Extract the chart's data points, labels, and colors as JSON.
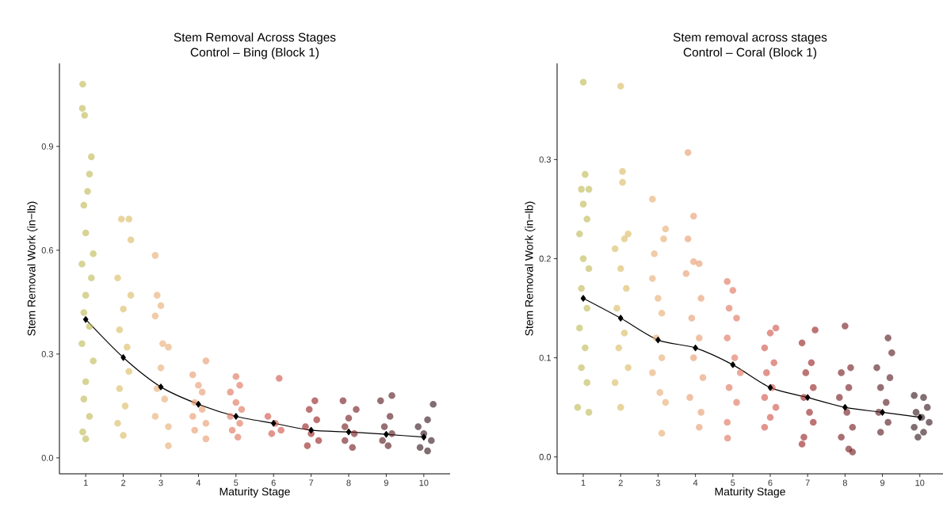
{
  "chart_data": [
    {
      "type": "scatter",
      "title": "Stem Removal Across Stages",
      "subtitle": "Control – Bing (Block 1)",
      "xlabel": "Maturity Stage",
      "ylabel": "Stem Removal Work (in−lb)",
      "xlim": [
        0.3,
        10.7
      ],
      "ylim": [
        -0.046,
        1.14
      ],
      "xticks": [
        1,
        2,
        3,
        4,
        5,
        6,
        7,
        8,
        9,
        10
      ],
      "yticks": [
        {
          "value": 0,
          "label": "0.0"
        },
        0.3,
        0.6,
        0.9
      ],
      "marker": "circle",
      "series": [
        {
          "color": "#c2bd5e",
          "x": [
            0.92,
            0.91,
            0.97,
            1.15,
            1.1,
            1.05,
            0.95,
            1.0,
            1.2,
            0.9,
            1.15,
            1.0,
            0.95,
            1.1,
            0.9,
            1.2,
            1.0,
            0.95,
            1.1,
            0.92,
            1.0
          ],
          "values": [
            1.08,
            1.01,
            0.99,
            0.87,
            0.82,
            0.77,
            0.73,
            0.65,
            0.59,
            0.56,
            0.52,
            0.47,
            0.42,
            0.38,
            0.33,
            0.28,
            0.22,
            0.17,
            0.12,
            0.075,
            0.055
          ]
        },
        {
          "color": "#dcbf6a",
          "x": [
            1.95,
            2.15,
            2.2,
            1.85,
            2.2,
            2.0,
            1.9,
            2.1,
            2.15,
            1.9,
            2.05,
            1.85,
            2.0
          ],
          "values": [
            0.69,
            0.69,
            0.63,
            0.52,
            0.47,
            0.43,
            0.37,
            0.32,
            0.25,
            0.2,
            0.15,
            0.1,
            0.065
          ]
        },
        {
          "color": "#e8b07a",
          "x": [
            2.85,
            2.9,
            3.0,
            2.85,
            3.05,
            3.2,
            3.0,
            2.9,
            3.1,
            2.85,
            3.2,
            3.2
          ],
          "values": [
            0.585,
            0.47,
            0.44,
            0.41,
            0.33,
            0.32,
            0.26,
            0.2,
            0.17,
            0.12,
            0.09,
            0.035
          ]
        },
        {
          "color": "#e8a075",
          "x": [
            4.2,
            3.85,
            4.0,
            4.1,
            3.9,
            4.1,
            3.85,
            4.2,
            3.9,
            4.2
          ],
          "values": [
            0.28,
            0.24,
            0.21,
            0.19,
            0.16,
            0.14,
            0.12,
            0.1,
            0.08,
            0.055
          ]
        },
        {
          "color": "#e07a62",
          "x": [
            5.0,
            5.1,
            4.85,
            5.0,
            5.15,
            4.85,
            5.1,
            4.9,
            5.05
          ],
          "values": [
            0.235,
            0.21,
            0.19,
            0.16,
            0.14,
            0.12,
            0.1,
            0.08,
            0.06
          ]
        },
        {
          "color": "#d25a52",
          "x": [
            6.15,
            5.85,
            6.05,
            6.2,
            5.95
          ],
          "values": [
            0.23,
            0.12,
            0.1,
            0.08,
            0.07
          ]
        },
        {
          "color": "#9b2a2a",
          "x": [
            7.1,
            6.95,
            7.15,
            6.85,
            7.0,
            7.2,
            6.9
          ],
          "values": [
            0.165,
            0.14,
            0.11,
            0.09,
            0.07,
            0.05,
            0.035
          ]
        },
        {
          "color": "#7a2428",
          "x": [
            7.85,
            8.2,
            8.0,
            7.9,
            8.15,
            7.9,
            8.1
          ],
          "values": [
            0.165,
            0.14,
            0.115,
            0.09,
            0.07,
            0.05,
            0.03
          ]
        },
        {
          "color": "#5e2228",
          "x": [
            9.15,
            8.85,
            9.1,
            8.95,
            9.15,
            8.9,
            9.05
          ],
          "values": [
            0.18,
            0.165,
            0.12,
            0.09,
            0.07,
            0.05,
            0.035
          ]
        },
        {
          "color": "#3e2026",
          "x": [
            10.25,
            10.1,
            9.85,
            10.0,
            10.2,
            9.9,
            10.1
          ],
          "values": [
            0.155,
            0.11,
            0.09,
            0.07,
            0.05,
            0.03,
            0.02
          ]
        },
        {
          "type": "line",
          "marker": "diamond",
          "color": "#000000",
          "x": [
            1,
            2,
            3,
            4,
            5,
            6,
            7,
            8,
            9,
            10
          ],
          "values": [
            0.4,
            0.29,
            0.205,
            0.155,
            0.12,
            0.1,
            0.08,
            0.075,
            0.068,
            0.06
          ]
        }
      ]
    },
    {
      "type": "scatter",
      "title": "Stem removal across stages",
      "subtitle": "Control – Coral (Block 1)",
      "xlabel": "Maturity Stage",
      "ylabel": "Stem Removal Work (in−lb)",
      "xlim": [
        0.3,
        10.62
      ],
      "ylim": [
        -0.017,
        0.397
      ],
      "xticks": [
        1,
        2,
        3,
        4,
        5,
        6,
        7,
        8,
        9,
        10
      ],
      "yticks": [
        {
          "value": 0,
          "label": "0.0"
        },
        0.1,
        0.2,
        0.3
      ],
      "marker": "circle",
      "series": [
        {
          "color": "#c2bd5e",
          "x": [
            1.0,
            1.05,
            0.95,
            1.15,
            1.0,
            1.1,
            0.9,
            1.0,
            1.15,
            0.95,
            1.1,
            0.9,
            1.05,
            0.95,
            1.1,
            0.85,
            1.15
          ],
          "values": [
            0.378,
            0.285,
            0.27,
            0.27,
            0.255,
            0.24,
            0.225,
            0.2,
            0.19,
            0.17,
            0.15,
            0.13,
            0.11,
            0.09,
            0.075,
            0.05,
            0.045
          ]
        },
        {
          "color": "#dcbf6a",
          "x": [
            2.0,
            2.05,
            2.05,
            2.2,
            2.1,
            1.85,
            2.0,
            2.15,
            1.9,
            2.1,
            1.95,
            2.2,
            1.85,
            2.0
          ],
          "values": [
            0.374,
            0.288,
            0.277,
            0.225,
            0.22,
            0.21,
            0.19,
            0.17,
            0.15,
            0.125,
            0.11,
            0.09,
            0.075,
            0.05
          ]
        },
        {
          "color": "#e8b07a",
          "x": [
            2.85,
            3.2,
            3.15,
            2.9,
            2.85,
            3.0,
            3.1,
            2.95,
            3.1,
            2.85,
            3.05,
            3.2,
            3.1
          ],
          "values": [
            0.26,
            0.23,
            0.22,
            0.205,
            0.18,
            0.16,
            0.145,
            0.12,
            0.1,
            0.085,
            0.065,
            0.055,
            0.024
          ]
        },
        {
          "color": "#e8a075",
          "x": [
            3.8,
            3.95,
            3.8,
            3.95,
            4.1,
            3.75,
            4.15,
            3.9,
            4.1,
            3.95,
            4.2,
            3.85,
            4.15,
            4.1
          ],
          "values": [
            0.307,
            0.243,
            0.22,
            0.197,
            0.195,
            0.185,
            0.16,
            0.14,
            0.12,
            0.1,
            0.08,
            0.06,
            0.045,
            0.03
          ]
        },
        {
          "color": "#e07a62",
          "x": [
            4.85,
            5.0,
            4.9,
            5.1,
            4.85,
            5.05,
            5.2,
            4.9,
            5.1,
            4.85,
            4.86
          ],
          "values": [
            0.177,
            0.168,
            0.15,
            0.14,
            0.12,
            0.1,
            0.085,
            0.07,
            0.055,
            0.035,
            0.019
          ]
        },
        {
          "color": "#d25a52",
          "x": [
            6.15,
            6.0,
            5.85,
            6.1,
            5.9,
            6.05,
            5.85,
            6.15,
            6.0,
            5.85
          ],
          "values": [
            0.13,
            0.125,
            0.11,
            0.095,
            0.085,
            0.07,
            0.06,
            0.05,
            0.04,
            0.03
          ]
        },
        {
          "color": "#9b2a2a",
          "x": [
            7.2,
            6.85,
            7.1,
            6.95,
            7.15,
            6.9,
            7.05,
            7.15,
            6.9,
            6.85
          ],
          "values": [
            0.128,
            0.115,
            0.095,
            0.085,
            0.07,
            0.06,
            0.045,
            0.035,
            0.02,
            0.013
          ]
        },
        {
          "color": "#7a2428",
          "x": [
            8.0,
            8.15,
            7.9,
            8.1,
            7.85,
            8.05,
            8.2,
            7.9,
            8.1,
            8.2
          ],
          "values": [
            0.132,
            0.09,
            0.085,
            0.07,
            0.06,
            0.045,
            0.03,
            0.02,
            0.008,
            0.005
          ]
        },
        {
          "color": "#5e2228",
          "x": [
            9.15,
            9.25,
            8.85,
            9.2,
            8.95,
            9.1,
            8.9,
            9.15,
            8.95
          ],
          "values": [
            0.12,
            0.105,
            0.09,
            0.08,
            0.07,
            0.055,
            0.045,
            0.035,
            0.025
          ]
        },
        {
          "color": "#3e2026",
          "x": [
            9.85,
            10.1,
            10.2,
            9.9,
            10.05,
            10.25,
            9.85,
            10.1,
            9.95
          ],
          "values": [
            0.062,
            0.06,
            0.05,
            0.045,
            0.04,
            0.035,
            0.03,
            0.025,
            0.02
          ]
        },
        {
          "type": "line",
          "marker": "diamond",
          "color": "#000000",
          "x": [
            1,
            2,
            3,
            4,
            5,
            6,
            7,
            8,
            9,
            10
          ],
          "values": [
            0.16,
            0.14,
            0.118,
            0.11,
            0.093,
            0.07,
            0.06,
            0.05,
            0.045,
            0.04
          ]
        }
      ]
    }
  ]
}
